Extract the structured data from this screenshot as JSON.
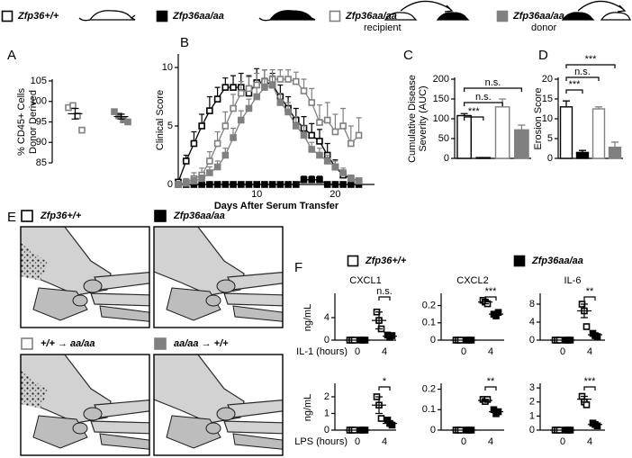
{
  "panels": [
    "A",
    "B",
    "C",
    "D",
    "E",
    "F"
  ],
  "legend": [
    {
      "label": "Zfp36+/+",
      "color": "#000000",
      "filled": false
    },
    {
      "label": "Zfp36aa/aa",
      "color": "#000000",
      "filled": true
    },
    {
      "label": "Zfp36aa/aa",
      "sublabel": "recipient",
      "color": "#808080",
      "filled": false
    },
    {
      "label": "Zfp36aa/aa",
      "sublabel": "donor",
      "color": "#808080",
      "filled": true
    }
  ],
  "images": [
    {
      "label": "Zfp36+/+",
      "color": "#000000",
      "filled": false
    },
    {
      "label": "Zfp36aa/aa",
      "color": "#000000",
      "filled": true
    },
    {
      "label": "+/+ → aa/aa",
      "color": "#808080",
      "filled": false
    },
    {
      "label": "aa/aa → +/+",
      "color": "#808080",
      "filled": true
    }
  ],
  "f_legend": [
    {
      "label": "Zfp36+/+",
      "color": "#000000",
      "filled": false
    },
    {
      "label": "Zfp36aa/aa",
      "color": "#000000",
      "filled": true
    }
  ],
  "chart_data": [
    {
      "type": "scatter",
      "ylabel": [
        "% CD45+ Cells",
        "Donor Derived"
      ],
      "ylim": [
        85,
        105
      ],
      "yticks": [
        85,
        90,
        95,
        100,
        105
      ],
      "series": [
        {
          "color": "#808080",
          "filled": false,
          "values": [
            98.5,
            99,
            96.5,
            93
          ],
          "mean": 97,
          "sem": 1.3
        },
        {
          "color": "#808080",
          "filled": true,
          "values": [
            97.5,
            96.5,
            95.5,
            95
          ],
          "mean": 96.3,
          "sem": 0.6
        }
      ]
    },
    {
      "type": "line",
      "ylabel": [
        "Clinical Score"
      ],
      "xlabel": "Days After Serum Transfer",
      "xlim": [
        0,
        25
      ],
      "xticks": [
        10,
        20
      ],
      "ylim": [
        0,
        11
      ],
      "yticks": [
        0,
        5,
        10
      ],
      "x": [
        0,
        1,
        2,
        3,
        4,
        5,
        6,
        7,
        8,
        9,
        10,
        11,
        12,
        13,
        14,
        15,
        16,
        17,
        18,
        19,
        20,
        21,
        22,
        23
      ],
      "series": [
        {
          "color": "#000000",
          "filled": false,
          "values": [
            0.2,
            2,
            3.5,
            5,
            6.3,
            7.3,
            8.3,
            8.3,
            8.3,
            7.8,
            8.7,
            8.8,
            8.5,
            7.5,
            6.5,
            5.5,
            4.8,
            4.2,
            3.7,
            2.5,
            1.5,
            0.8,
            0.5,
            0.3
          ],
          "errors": [
            0,
            0.5,
            1,
            1,
            1.2,
            1,
            0.8,
            1,
            1.2,
            1.5,
            1.2,
            1,
            1,
            1,
            1,
            1,
            1,
            1,
            1,
            1,
            0.6,
            0.4,
            0.3,
            0.2
          ]
        },
        {
          "color": "#000000",
          "filled": true,
          "values": [
            0,
            0,
            0,
            0,
            0,
            0,
            0,
            0,
            0,
            0,
            0,
            0,
            0,
            0,
            0,
            0,
            0.4,
            0.4,
            0.4,
            0,
            0,
            0,
            0,
            0
          ],
          "errors": [
            0,
            0,
            0,
            0,
            0,
            0,
            0,
            0,
            0,
            0,
            0,
            0,
            0,
            0,
            0,
            0,
            0.3,
            0.3,
            0.3,
            0,
            0,
            0,
            0,
            0
          ]
        },
        {
          "color": "#808080",
          "filled": false,
          "values": [
            0,
            0.2,
            0.5,
            0.8,
            2,
            3.5,
            5,
            6.5,
            7.8,
            8.2,
            8.5,
            8.8,
            9,
            9,
            9,
            8.8,
            8,
            7,
            5.3,
            5.5,
            4.5,
            5,
            3.5,
            4.2
          ],
          "errors": [
            0,
            0.3,
            0.5,
            0.6,
            0.8,
            1,
            1.2,
            1.2,
            1,
            1,
            1,
            1,
            0.8,
            0.8,
            0.8,
            0.8,
            1,
            1.2,
            1.5,
            1.5,
            1.5,
            1.5,
            1.5,
            1.5
          ]
        },
        {
          "color": "#808080",
          "filled": true,
          "values": [
            0,
            0.1,
            0.3,
            0.5,
            1,
            1.5,
            2.5,
            4,
            5.5,
            6.5,
            7.5,
            8.3,
            8.5,
            7,
            6.2,
            5,
            4.2,
            3,
            2.5,
            2,
            1.5,
            1,
            0.5,
            0.3
          ],
          "errors": [
            0,
            0.2,
            0.3,
            0.3,
            0.5,
            0.5,
            0.6,
            0.8,
            0.8,
            0.8,
            0.8,
            0.8,
            0.8,
            0.8,
            0.8,
            0.8,
            0.8,
            0.6,
            0.6,
            0.5,
            0.5,
            0.4,
            0.3,
            0.2
          ]
        }
      ]
    },
    {
      "type": "bar",
      "ylabel": [
        "Cumulative Disease",
        "Severity (AUC)"
      ],
      "ylim": [
        0,
        200
      ],
      "yticks": [
        0,
        50,
        100,
        150,
        200
      ],
      "values": [
        108,
        2,
        130,
        72
      ],
      "errors": [
        5,
        0,
        20,
        12
      ],
      "colors": [
        "#000000",
        "#000000",
        "#808080",
        "#808080"
      ],
      "filled": [
        false,
        true,
        false,
        true
      ],
      "annotations": [
        "***",
        "n.s.",
        "n.s."
      ]
    },
    {
      "type": "bar",
      "ylabel": [
        "Erosion Score"
      ],
      "ylim": [
        0,
        20
      ],
      "yticks": [
        0,
        5,
        10,
        15,
        20
      ],
      "values": [
        13,
        1.5,
        12.5,
        2.8
      ],
      "errors": [
        1.5,
        0.5,
        0.5,
        1.3
      ],
      "colors": [
        "#000000",
        "#000000",
        "#808080",
        "#808080"
      ],
      "filled": [
        false,
        true,
        false,
        true
      ],
      "annotations": [
        "***",
        "n.s.",
        "***"
      ]
    },
    {
      "type": "scatter",
      "title": "CXCL1",
      "ylabel": [
        "ng/mL"
      ],
      "xlabel": "IL-1 (hours)",
      "categories": [
        "0",
        "4"
      ],
      "ylim": [
        0,
        8
      ],
      "yticks": [
        0,
        4
      ],
      "annotation": "n.s.",
      "series": [
        {
          "color": "#000000",
          "filled": false,
          "values": [
            [
              0,
              0,
              0
            ],
            [
              5,
              3.5,
              2
            ]
          ],
          "mean": [
            0,
            3.5
          ],
          "sem": [
            0,
            1.5
          ]
        },
        {
          "color": "#000000",
          "filled": true,
          "values": [
            [
              0,
              0,
              0
            ],
            [
              0.9,
              0.5,
              0.8
            ]
          ],
          "mean": [
            0,
            0.7
          ],
          "sem": [
            0,
            0.2
          ]
        }
      ]
    },
    {
      "type": "scatter",
      "title": "CXCL2",
      "categories": [
        "0",
        "4"
      ],
      "ylim": [
        0,
        0.26
      ],
      "yticks": [
        0,
        0.1,
        0.2
      ],
      "annotation": "***",
      "series": [
        {
          "color": "#000000",
          "filled": false,
          "values": [
            [
              0,
              0,
              0
            ],
            [
              0.23,
              0.22,
              0.21
            ]
          ],
          "mean": [
            0,
            0.22
          ],
          "sem": [
            0,
            0.01
          ]
        },
        {
          "color": "#000000",
          "filled": true,
          "values": [
            [
              0,
              0,
              0
            ],
            [
              0.15,
              0.14,
              0.16
            ]
          ],
          "mean": [
            0,
            0.15
          ],
          "sem": [
            0,
            0.005
          ]
        }
      ]
    },
    {
      "type": "scatter",
      "title": "IL-6",
      "categories": [
        "0",
        "4"
      ],
      "ylim": [
        0,
        10
      ],
      "yticks": [
        0,
        4,
        8
      ],
      "annotation": "**",
      "series": [
        {
          "color": "#000000",
          "filled": false,
          "values": [
            [
              0,
              0,
              0
            ],
            [
              8,
              6.5,
              3
            ]
          ],
          "mean": [
            0,
            6.5
          ],
          "sem": [
            0,
            1.5
          ]
        },
        {
          "color": "#000000",
          "filled": true,
          "values": [
            [
              0,
              0,
              0
            ],
            [
              1.5,
              1,
              0.8
            ]
          ],
          "mean": [
            0,
            1.2
          ],
          "sem": [
            0,
            0.2
          ]
        }
      ]
    },
    {
      "type": "scatter",
      "ylabel": [
        "ng/mL"
      ],
      "xlabel": "LPS (hours)",
      "categories": [
        "0",
        "4"
      ],
      "ylim": [
        0,
        2.7
      ],
      "yticks": [
        0,
        1,
        2
      ],
      "annotation": "*",
      "series": [
        {
          "color": "#000000",
          "filled": false,
          "values": [
            [
              0,
              0,
              0
            ],
            [
              2,
              1.5,
              0.7
            ]
          ],
          "mean": [
            0,
            1.5
          ],
          "sem": [
            0,
            0.5
          ]
        },
        {
          "color": "#000000",
          "filled": true,
          "values": [
            [
              0,
              0,
              0
            ],
            [
              0.6,
              0.4,
              0.3
            ]
          ],
          "mean": [
            0,
            0.4
          ],
          "sem": [
            0,
            0.1
          ]
        }
      ]
    },
    {
      "type": "scatter",
      "categories": [
        "0",
        "4"
      ],
      "ylim": [
        0,
        0.22
      ],
      "yticks": [
        0,
        0.1,
        0.2
      ],
      "annotation": "**",
      "series": [
        {
          "color": "#000000",
          "filled": false,
          "values": [
            [
              0,
              0,
              0
            ],
            [
              0.15,
              0.14,
              0.15
            ]
          ],
          "mean": [
            0,
            0.145
          ],
          "sem": [
            0,
            0.005
          ]
        },
        {
          "color": "#000000",
          "filled": true,
          "values": [
            [
              0,
              0,
              0
            ],
            [
              0.1,
              0.08,
              0.09
            ]
          ],
          "mean": [
            0,
            0.09
          ],
          "sem": [
            0,
            0.006
          ]
        }
      ]
    },
    {
      "type": "scatter",
      "categories": [
        "0",
        "4"
      ],
      "ylim": [
        0,
        3.2
      ],
      "yticks": [
        0,
        1,
        2,
        3
      ],
      "annotation": "***",
      "series": [
        {
          "color": "#000000",
          "filled": false,
          "values": [
            [
              0,
              0,
              0
            ],
            [
              2.4,
              2,
              1.8
            ]
          ],
          "mean": [
            0,
            2.2
          ],
          "sem": [
            0,
            0.2
          ]
        },
        {
          "color": "#000000",
          "filled": true,
          "values": [
            [
              0,
              0,
              0
            ],
            [
              0.5,
              0.4,
              0.3
            ]
          ],
          "mean": [
            0,
            0.4
          ],
          "sem": [
            0,
            0.06
          ]
        }
      ]
    }
  ]
}
